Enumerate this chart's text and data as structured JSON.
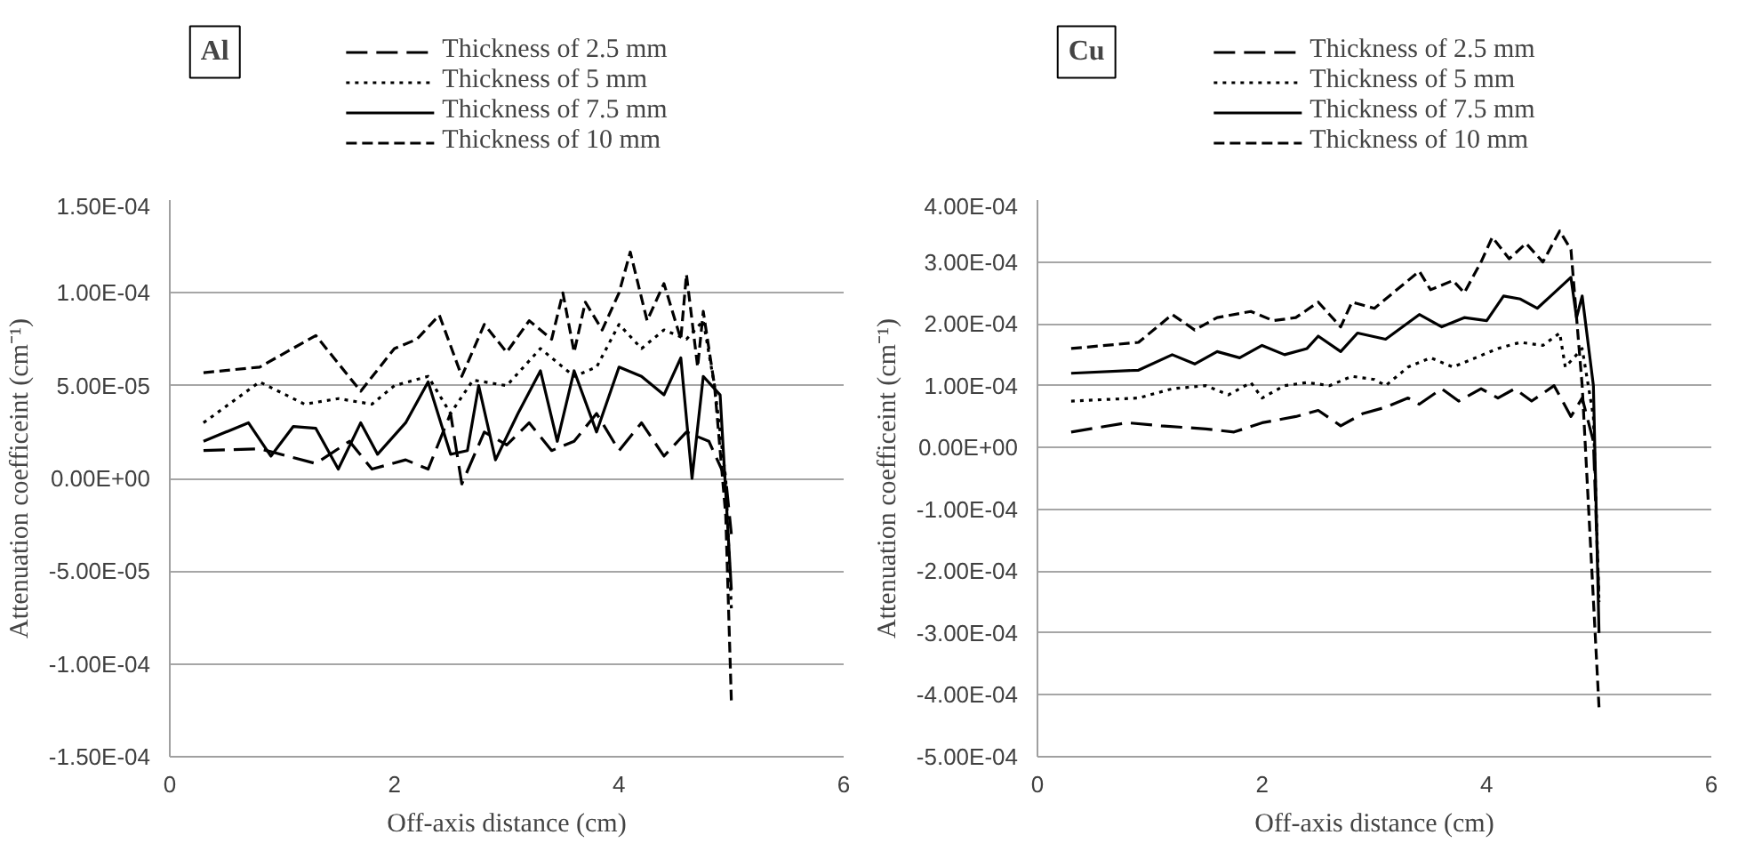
{
  "chart_data": [
    {
      "type": "line",
      "title": "Al",
      "xlabel": "Off-axis distance (cm)",
      "ylabel": "Attenuation coefficeint (cm⁻¹)",
      "xlim": [
        0,
        6
      ],
      "xticks": [
        0,
        2,
        4,
        6
      ],
      "ylim": [
        -0.00015,
        0.00015
      ],
      "yticks": [
        {
          "value": -0.00015,
          "label": "-1.50E-04"
        },
        {
          "value": -0.0001,
          "label": "-1.00E-04"
        },
        {
          "value": -5e-05,
          "label": "-5.00E-05"
        },
        {
          "value": 0,
          "label": "0.00E+00"
        },
        {
          "value": 5e-05,
          "label": "5.00E-05"
        },
        {
          "value": 0.0001,
          "label": "1.00E-04"
        },
        {
          "value": 0.00015,
          "label": "1.50E-04"
        }
      ],
      "grid": "y",
      "legend": "top",
      "series": [
        {
          "name": "Thickness of 2.5 mm",
          "color": "#000000",
          "line_style": "dashed",
          "x": [
            0.3,
            0.8,
            1.3,
            1.6,
            1.8,
            2.1,
            2.3,
            2.5,
            2.6,
            2.8,
            3.0,
            3.2,
            3.4,
            3.6,
            3.8,
            4.0,
            4.2,
            4.4,
            4.6,
            4.8,
            4.95,
            5.0
          ],
          "values": [
            1.5e-05,
            1.6e-05,
            8e-06,
            2e-05,
            5e-06,
            1e-05,
            5e-06,
            3.5e-05,
            -3e-06,
            2.5e-05,
            1.8e-05,
            3e-05,
            1.5e-05,
            2e-05,
            3.5e-05,
            1.5e-05,
            3e-05,
            1.2e-05,
            2.5e-05,
            2e-05,
            0,
            -3e-05
          ]
        },
        {
          "name": "Thickness of 5 mm",
          "color": "#000000",
          "line_style": "dotted",
          "x": [
            0.3,
            0.8,
            1.2,
            1.5,
            1.8,
            2.0,
            2.3,
            2.5,
            2.7,
            3.0,
            3.3,
            3.6,
            3.8,
            4.0,
            4.2,
            4.4,
            4.6,
            4.75,
            4.85,
            4.95,
            5.0
          ],
          "values": [
            3e-05,
            5.2e-05,
            4e-05,
            4.3e-05,
            4e-05,
            5e-05,
            5.5e-05,
            3.5e-05,
            5.3e-05,
            5e-05,
            7e-05,
            5.5e-05,
            6e-05,
            8.3e-05,
            7e-05,
            8e-05,
            7.5e-05,
            8.5e-05,
            5e-05,
            0,
            -7e-05
          ]
        },
        {
          "name": "Thickness of 7.5 mm",
          "color": "#000000",
          "line_style": "solid",
          "x": [
            0.3,
            0.7,
            0.9,
            1.1,
            1.3,
            1.5,
            1.7,
            1.85,
            2.1,
            2.3,
            2.5,
            2.65,
            2.75,
            2.9,
            3.1,
            3.3,
            3.45,
            3.6,
            3.8,
            4.0,
            4.2,
            4.4,
            4.55,
            4.65,
            4.75,
            4.9,
            5.0
          ],
          "values": [
            2e-05,
            3e-05,
            1.2e-05,
            2.8e-05,
            2.7e-05,
            5e-06,
            3e-05,
            1.3e-05,
            3e-05,
            5.2e-05,
            1.3e-05,
            1.5e-05,
            5e-05,
            1e-05,
            3.5e-05,
            5.8e-05,
            2e-05,
            5.8e-05,
            2.5e-05,
            6e-05,
            5.5e-05,
            4.5e-05,
            6.5e-05,
            0,
            5.5e-05,
            4.5e-05,
            -6e-05
          ]
        },
        {
          "name": "Thickness of 10 mm",
          "color": "#000000",
          "line_style": "dashed",
          "x": [
            0.3,
            0.8,
            1.3,
            1.7,
            2.0,
            2.2,
            2.4,
            2.6,
            2.8,
            3.0,
            3.2,
            3.4,
            3.5,
            3.6,
            3.7,
            3.85,
            4.0,
            4.1,
            4.25,
            4.4,
            4.55,
            4.6,
            4.7,
            4.75,
            4.85,
            4.95,
            5.0
          ],
          "values": [
            5.7e-05,
            6e-05,
            7.7e-05,
            4.7e-05,
            7e-05,
            7.5e-05,
            8.8e-05,
            5.5e-05,
            8.3e-05,
            6.8e-05,
            8.5e-05,
            7.5e-05,
            0.0001,
            6.8e-05,
            9.5e-05,
            8e-05,
            0.0001,
            0.000122,
            8.5e-05,
            0.000105,
            7.5e-05,
            0.00011,
            6e-05,
            9e-05,
            5e-05,
            -2e-05,
            -0.00012
          ]
        }
      ]
    },
    {
      "type": "line",
      "title": "Cu",
      "xlabel": "Off-axis distance (cm)",
      "ylabel": "Attenuation coefficeint (cm⁻¹)",
      "xlim": [
        0,
        6
      ],
      "xticks": [
        0,
        2,
        4,
        6
      ],
      "ylim": [
        -0.0005,
        0.0004
      ],
      "yticks": [
        {
          "value": -0.0005,
          "label": "-5.00E-04"
        },
        {
          "value": -0.0004,
          "label": "-4.00E-04"
        },
        {
          "value": -0.0003,
          "label": "-3.00E-04"
        },
        {
          "value": -0.0002,
          "label": "-2.00E-04"
        },
        {
          "value": -0.0001,
          "label": "-1.00E-04"
        },
        {
          "value": 0,
          "label": "0.00E+00"
        },
        {
          "value": 0.0001,
          "label": "1.00E-04"
        },
        {
          "value": 0.0002,
          "label": "2.00E-04"
        },
        {
          "value": 0.0003,
          "label": "3.00E-04"
        },
        {
          "value": 0.0004,
          "label": "4.00E-04"
        }
      ],
      "grid": "y",
      "legend": "top",
      "series": [
        {
          "name": "Thickness of 2.5 mm",
          "color": "#000000",
          "line_style": "dashed",
          "x": [
            0.3,
            0.8,
            1.1,
            1.5,
            1.75,
            2.0,
            2.3,
            2.5,
            2.7,
            2.9,
            3.1,
            3.3,
            3.4,
            3.6,
            3.75,
            3.95,
            4.1,
            4.25,
            4.4,
            4.6,
            4.75,
            4.85,
            4.95,
            5.0
          ],
          "values": [
            2.5e-05,
            4e-05,
            3.5e-05,
            3e-05,
            2.5e-05,
            4e-05,
            5e-05,
            6e-05,
            3.5e-05,
            5.5e-05,
            6.5e-05,
            8e-05,
            7e-05,
            9.5e-05,
            7.5e-05,
            9.5e-05,
            8e-05,
            9.5e-05,
            7.5e-05,
            0.0001,
            5e-05,
            8e-05,
            1e-05,
            -0.00025
          ]
        },
        {
          "name": "Thickness of 5 mm",
          "color": "#000000",
          "line_style": "dotted",
          "x": [
            0.3,
            0.9,
            1.2,
            1.5,
            1.7,
            1.9,
            2.0,
            2.2,
            2.4,
            2.6,
            2.8,
            3.0,
            3.1,
            3.3,
            3.5,
            3.7,
            3.9,
            4.1,
            4.3,
            4.5,
            4.65,
            4.7,
            4.85,
            4.95,
            5.0
          ],
          "values": [
            7.5e-05,
            8e-05,
            9.5e-05,
            0.0001,
            8.5e-05,
            0.000105,
            8e-05,
            0.0001,
            0.000105,
            0.0001,
            0.000115,
            0.00011,
            0.0001,
            0.00013,
            0.000145,
            0.00013,
            0.000145,
            0.00016,
            0.00017,
            0.000165,
            0.000185,
            0.00013,
            0.00016,
            5e-05,
            -0.00025
          ]
        },
        {
          "name": "Thickness of 7.5 mm",
          "color": "#000000",
          "line_style": "solid",
          "x": [
            0.3,
            0.9,
            1.2,
            1.4,
            1.6,
            1.8,
            2.0,
            2.2,
            2.4,
            2.5,
            2.7,
            2.85,
            3.1,
            3.4,
            3.6,
            3.8,
            4.0,
            4.15,
            4.3,
            4.45,
            4.6,
            4.75,
            4.8,
            4.85,
            4.95,
            5.0
          ],
          "values": [
            0.00012,
            0.000125,
            0.00015,
            0.000135,
            0.000155,
            0.000145,
            0.000165,
            0.00015,
            0.00016,
            0.00018,
            0.000155,
            0.000185,
            0.000175,
            0.000215,
            0.000195,
            0.00021,
            0.000205,
            0.000245,
            0.00024,
            0.000225,
            0.00025,
            0.000275,
            0.00021,
            0.000245,
            0.0001,
            -0.0003
          ]
        },
        {
          "name": "Thickness of 10 mm",
          "color": "#000000",
          "line_style": "dashed",
          "x": [
            0.3,
            0.9,
            1.2,
            1.4,
            1.6,
            1.9,
            2.1,
            2.3,
            2.5,
            2.7,
            2.8,
            3.0,
            3.2,
            3.4,
            3.5,
            3.7,
            3.8,
            3.95,
            4.05,
            4.2,
            4.35,
            4.5,
            4.65,
            4.75,
            4.85,
            5.0
          ],
          "values": [
            0.00016,
            0.00017,
            0.000215,
            0.00019,
            0.00021,
            0.00022,
            0.000205,
            0.00021,
            0.000235,
            0.000195,
            0.000235,
            0.000225,
            0.000255,
            0.000285,
            0.000255,
            0.00027,
            0.00025,
            0.0003,
            0.00034,
            0.000305,
            0.00033,
            0.0003,
            0.00035,
            0.00032,
            0.0001,
            -0.00042
          ]
        }
      ]
    }
  ]
}
